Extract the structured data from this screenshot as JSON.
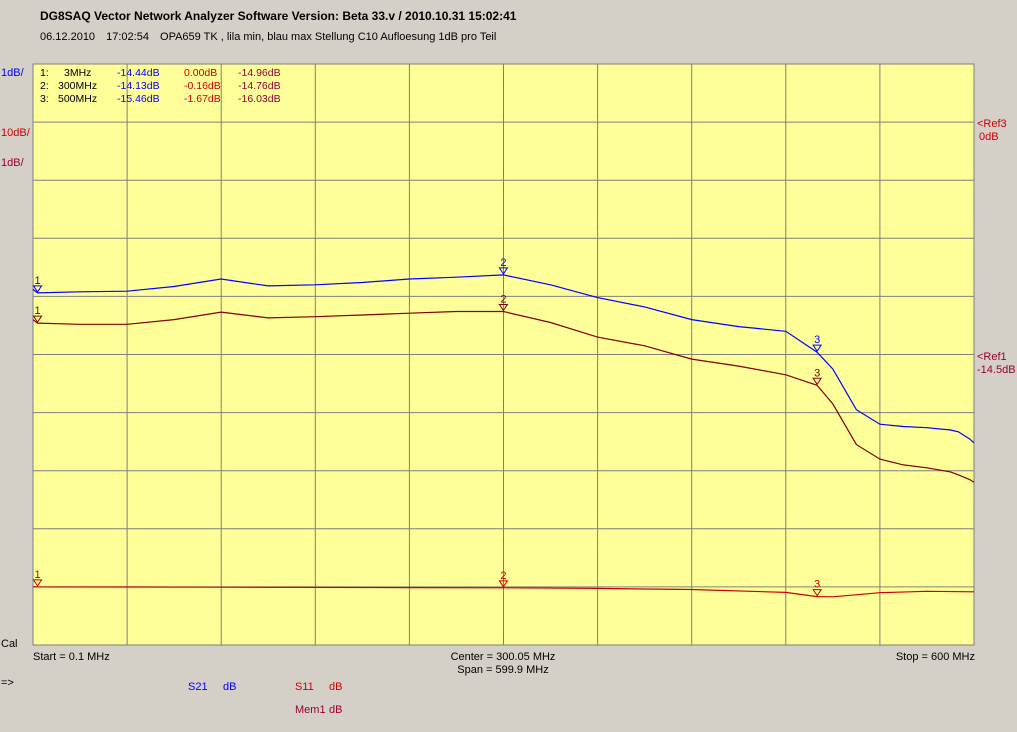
{
  "header": {
    "title": "DG8SAQ Vector Network Analyzer Software   Version:  Beta 33.v / 2010.10.31 15:02:41",
    "date": "06.12.2010",
    "time": "17:02:54",
    "comment": "OPA659 TK , lila min, blau max Stellung C10 Aufloesung 1dB pro Teil"
  },
  "left_scale": {
    "blue_scale": "1dB/",
    "red_scale": "10dB/",
    "plum_scale": "1dB/",
    "cal": "Cal"
  },
  "right_refs": {
    "red_ref": "<Ref3",
    "red_ref_value": "0dB",
    "plum_ref": "<Ref1",
    "plum_ref_value": "-14.5dB"
  },
  "marker_table": {
    "rows": [
      {
        "idx": "1:",
        "freq": "3MHz",
        "s21": "-14.44dB",
        "s11": "0.00dB",
        "mem": "-14.96dB"
      },
      {
        "idx": "2:",
        "freq": "300MHz",
        "s21": "-14.13dB",
        "s11": "-0.16dB",
        "mem": "-14.76dB"
      },
      {
        "idx": "3:",
        "freq": "500MHz",
        "s21": "-15.46dB",
        "s11": "-1.67dB",
        "mem": "-16.03dB"
      }
    ]
  },
  "bottom": {
    "start": "Start = 0.1 MHz",
    "center": "Center = 300.05 MHz",
    "span": "Span = 599.9 MHz",
    "stop": "Stop = 600 MHz",
    "arrow": "=>"
  },
  "legend": {
    "s21": "S21",
    "s21_unit": "dB",
    "s11": "S11",
    "s11_unit": "dB",
    "mem": "Mem1",
    "mem_unit": "dB"
  },
  "colors": {
    "plot_bg": "#ffff99",
    "grid": "#7f7f7f",
    "s21": "#0000ff",
    "s11": "#cc0000",
    "mem": "#800000",
    "app_bg": "#d4d0c8"
  },
  "chart_data": {
    "type": "line",
    "xlabel": "",
    "ylabel": "",
    "xlim": [
      0.1,
      600
    ],
    "grid": true,
    "markers": [
      {
        "label": "1",
        "x": 3
      },
      {
        "label": "2",
        "x": 300
      },
      {
        "label": "3",
        "x": 500
      }
    ],
    "series": [
      {
        "name": "S21",
        "unit": "dB",
        "scale_per_div": 1,
        "ref_db": -14.5,
        "ylim": [
          -20.5,
          -10.5
        ],
        "x": [
          0.1,
          3,
          30,
          60,
          90,
          120,
          150,
          180,
          210,
          240,
          270,
          300,
          330,
          360,
          390,
          420,
          450,
          480,
          500,
          510,
          525,
          540,
          555,
          570,
          585,
          590,
          597,
          600
        ],
        "values": [
          -14.38,
          -14.44,
          -14.42,
          -14.41,
          -14.33,
          -14.2,
          -14.32,
          -14.3,
          -14.26,
          -14.2,
          -14.17,
          -14.13,
          -14.3,
          -14.52,
          -14.68,
          -14.9,
          -15.02,
          -15.1,
          -15.46,
          -15.75,
          -16.45,
          -16.7,
          -16.74,
          -16.76,
          -16.8,
          -16.83,
          -16.95,
          -17.02
        ]
      },
      {
        "name": "S11",
        "unit": "dB",
        "scale_per_div": 10,
        "ref_db": 0,
        "ylim": [
          -10,
          90
        ],
        "x": [
          0.1,
          3,
          60,
          120,
          180,
          240,
          300,
          360,
          420,
          480,
          500,
          510,
          540,
          570,
          600
        ],
        "values": [
          0.03,
          0.0,
          -0.02,
          -0.05,
          -0.09,
          -0.12,
          -0.16,
          -0.25,
          -0.45,
          -0.95,
          -1.67,
          -1.7,
          -1.0,
          -0.75,
          -0.85
        ]
      },
      {
        "name": "Mem1",
        "unit": "dB",
        "scale_per_div": 1,
        "ref_db": -14.5,
        "ylim": [
          -20.5,
          -10.5
        ],
        "x": [
          0.1,
          3,
          30,
          60,
          90,
          120,
          150,
          180,
          210,
          240,
          270,
          300,
          330,
          360,
          390,
          420,
          450,
          480,
          500,
          510,
          525,
          540,
          555,
          570,
          585,
          590,
          597,
          600
        ],
        "values": [
          -14.9,
          -14.96,
          -14.98,
          -14.98,
          -14.9,
          -14.77,
          -14.87,
          -14.85,
          -14.82,
          -14.79,
          -14.76,
          -14.76,
          -14.95,
          -15.2,
          -15.35,
          -15.58,
          -15.7,
          -15.85,
          -16.03,
          -16.35,
          -17.05,
          -17.3,
          -17.4,
          -17.45,
          -17.52,
          -17.57,
          -17.65,
          -17.7
        ]
      }
    ]
  }
}
